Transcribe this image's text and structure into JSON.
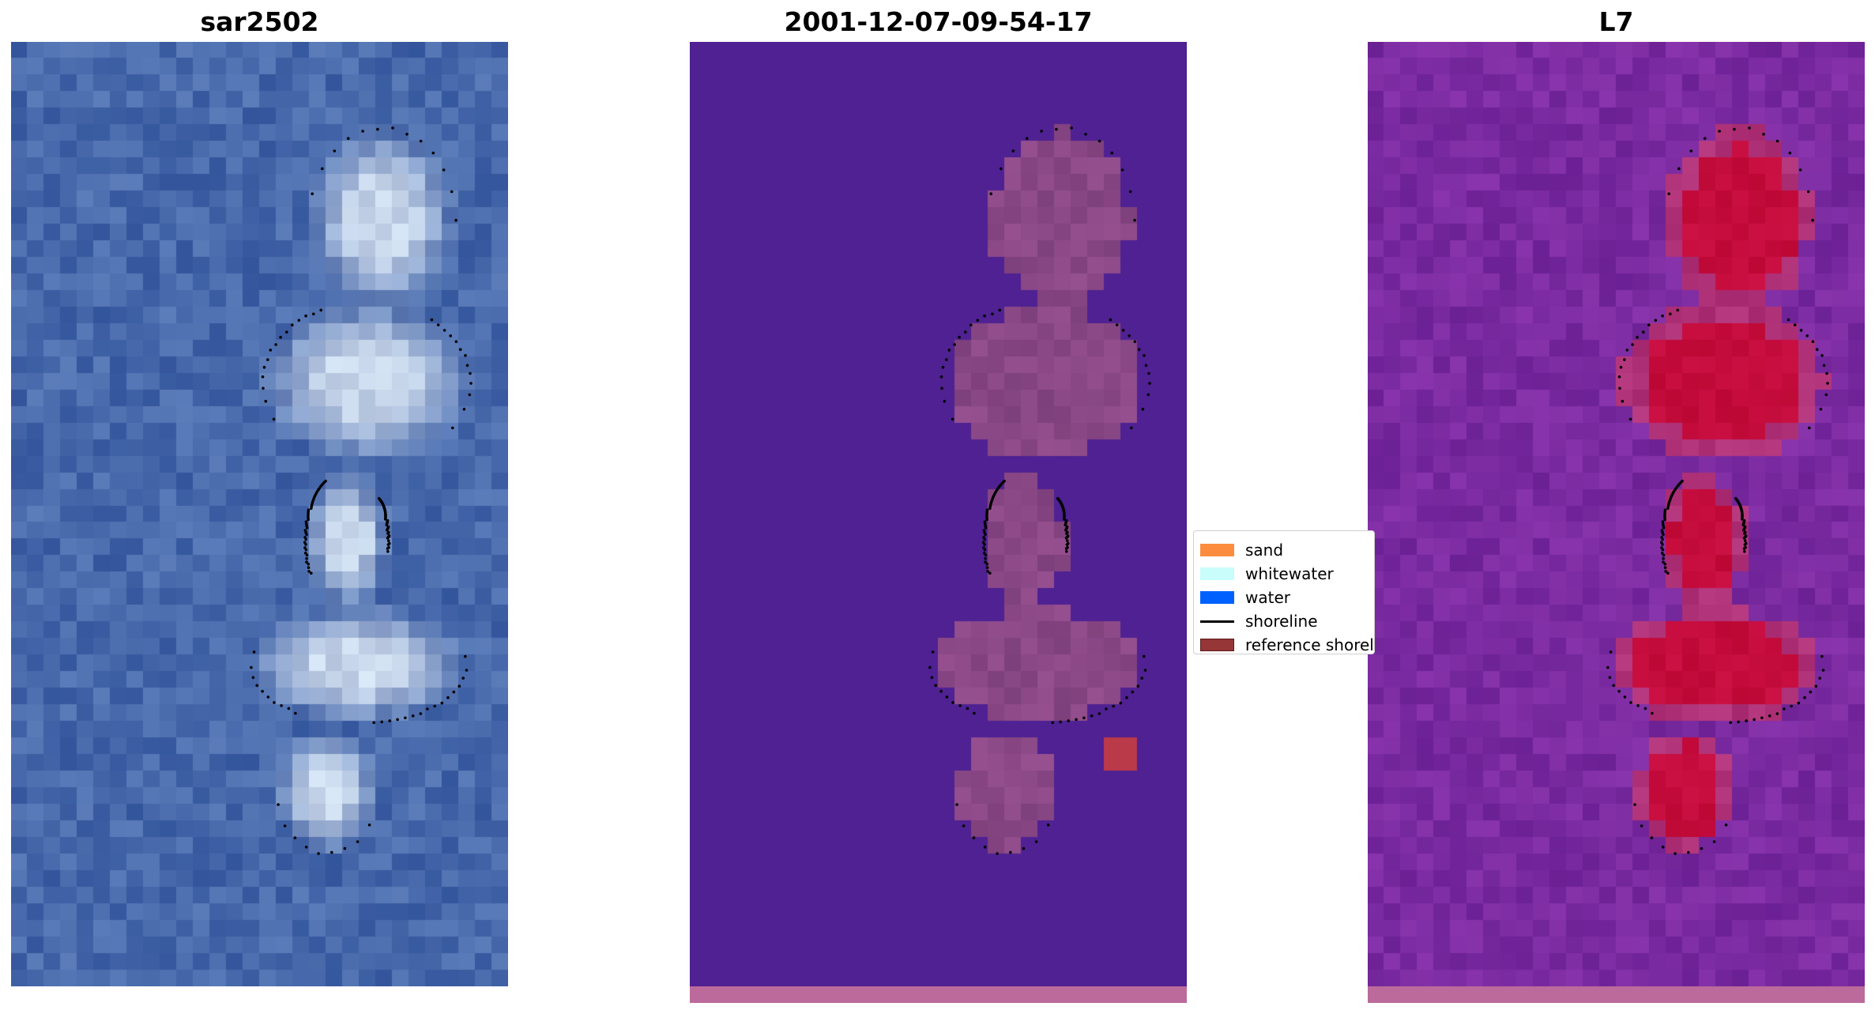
{
  "panels": [
    {
      "title": "sar2502",
      "image": "true-color satellite image",
      "scheme": "rgb"
    },
    {
      "title": "2001-12-07-09-54-17",
      "image": "classified image",
      "scheme": "classified"
    },
    {
      "title": "L7",
      "image": "water index image",
      "scheme": "index"
    }
  ],
  "legend": {
    "items": [
      {
        "label": "sand",
        "color": "#fc8d3e",
        "kind": "patch"
      },
      {
        "label": "whitewater",
        "color": "#c8fdfb",
        "kind": "patch"
      },
      {
        "label": "water",
        "color": "#0062fe",
        "kind": "patch"
      },
      {
        "label": "shoreline",
        "color": "#000000",
        "kind": "line"
      },
      {
        "label": "reference shoreline",
        "color": "#963636",
        "kind": "patch"
      }
    ]
  },
  "colors": {
    "water_background": "#4f2192",
    "land_overlay": "#8a4a86",
    "index_background": "#7a2aa0",
    "index_high": "#c4063a",
    "ocean_blue": "#2c5aa5",
    "bottom_stripe": "#bb6a9b"
  }
}
